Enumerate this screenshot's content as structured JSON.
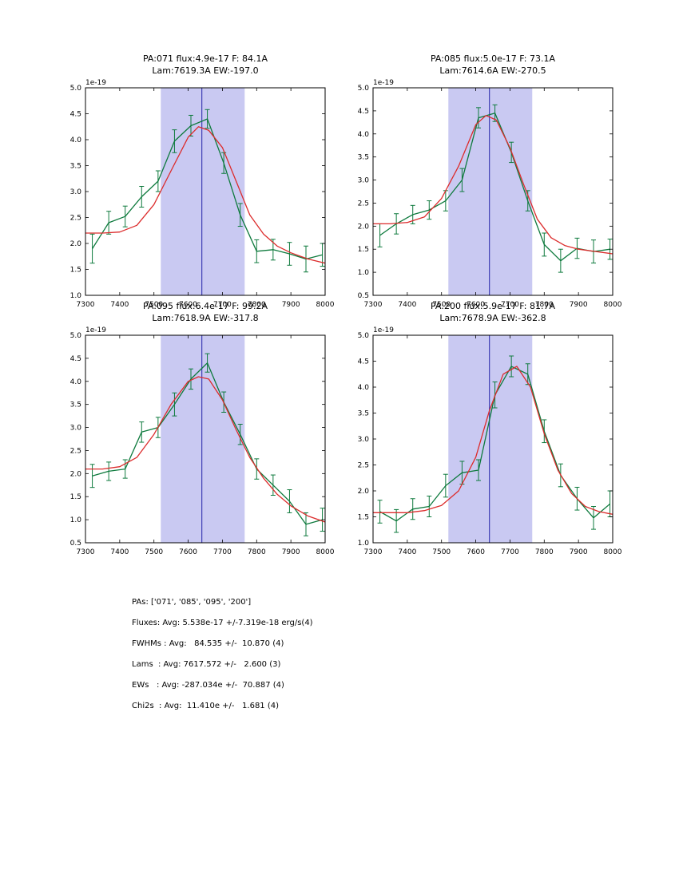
{
  "colors": {
    "band": "#c9c9f2",
    "vline": "#2222aa",
    "data_series": "#0e7a3d",
    "fit": "#dc2c2c",
    "axis": "#000000",
    "background": "#ffffff"
  },
  "chart_data": [
    {
      "type": "line",
      "title_line1": "PA:071 flux:4.9e-17 F: 84.1A",
      "title_line2": "Lam:7619.3A EW:-197.0",
      "offset_label": "1e-19",
      "xlim": [
        7300,
        8000
      ],
      "ylim": [
        1.0,
        5.0
      ],
      "xticks": [
        7300,
        7400,
        7500,
        7600,
        7700,
        7800,
        7900,
        8000
      ],
      "yticks": [
        1.0,
        1.5,
        2.0,
        2.5,
        3.0,
        3.5,
        4.0,
        4.5,
        5.0
      ],
      "band": [
        7520,
        7765
      ],
      "vline": 7640,
      "legend": "off",
      "grid": "off",
      "series": [
        {
          "name": "spectrum-data",
          "color_key": "data_series",
          "x": [
            7320,
            7368,
            7416,
            7464,
            7512,
            7560,
            7608,
            7656,
            7704,
            7752,
            7800,
            7848,
            7896,
            7944,
            7992
          ],
          "y": [
            1.9,
            2.4,
            2.52,
            2.9,
            3.2,
            3.97,
            4.27,
            4.4,
            3.55,
            2.55,
            1.85,
            1.88,
            1.8,
            1.7,
            1.78
          ],
          "yerr": [
            0.28,
            0.22,
            0.2,
            0.2,
            0.2,
            0.22,
            0.2,
            0.18,
            0.2,
            0.22,
            0.22,
            0.2,
            0.22,
            0.25,
            0.22
          ]
        },
        {
          "name": "model-fit",
          "color_key": "fit",
          "x": [
            7300,
            7350,
            7400,
            7450,
            7500,
            7550,
            7600,
            7630,
            7660,
            7700,
            7740,
            7780,
            7820,
            7860,
            7900,
            7950,
            8000
          ],
          "y": [
            2.2,
            2.2,
            2.22,
            2.35,
            2.75,
            3.4,
            4.05,
            4.25,
            4.18,
            3.85,
            3.2,
            2.55,
            2.18,
            1.95,
            1.82,
            1.7,
            1.62
          ]
        }
      ]
    },
    {
      "type": "line",
      "title_line1": "PA:085 flux:5.0e-17 F: 73.1A",
      "title_line2": "Lam:7614.6A EW:-270.5",
      "offset_label": "1e-19",
      "xlim": [
        7300,
        8000
      ],
      "ylim": [
        0.5,
        5.0
      ],
      "xticks": [
        7300,
        7400,
        7500,
        7600,
        7700,
        7800,
        7900,
        8000
      ],
      "yticks": [
        0.5,
        1.0,
        1.5,
        2.0,
        2.5,
        3.0,
        3.5,
        4.0,
        4.5,
        5.0
      ],
      "band": [
        7520,
        7765
      ],
      "vline": 7640,
      "legend": "off",
      "grid": "off",
      "series": [
        {
          "name": "spectrum-data",
          "color_key": "data_series",
          "x": [
            7320,
            7368,
            7416,
            7464,
            7512,
            7560,
            7608,
            7656,
            7704,
            7752,
            7800,
            7848,
            7896,
            7944,
            7992
          ],
          "y": [
            1.8,
            2.05,
            2.25,
            2.35,
            2.55,
            3.0,
            4.35,
            4.45,
            3.6,
            2.55,
            1.6,
            1.25,
            1.52,
            1.45,
            1.5
          ],
          "yerr": [
            0.25,
            0.22,
            0.2,
            0.2,
            0.22,
            0.25,
            0.22,
            0.18,
            0.22,
            0.22,
            0.25,
            0.25,
            0.22,
            0.25,
            0.22
          ]
        },
        {
          "name": "model-fit",
          "color_key": "fit",
          "x": [
            7300,
            7350,
            7400,
            7450,
            7500,
            7550,
            7600,
            7630,
            7660,
            7700,
            7740,
            7780,
            7820,
            7860,
            7900,
            7950,
            8000
          ],
          "y": [
            2.05,
            2.05,
            2.08,
            2.2,
            2.6,
            3.3,
            4.2,
            4.4,
            4.3,
            3.7,
            2.9,
            2.15,
            1.75,
            1.58,
            1.5,
            1.45,
            1.4
          ]
        }
      ]
    },
    {
      "type": "line",
      "title_line1": "PA:095 flux:6.4e-17 F: 99.2A",
      "title_line2": "Lam:7618.9A EW:-317.8",
      "offset_label": "1e-19",
      "xlim": [
        7300,
        8000
      ],
      "ylim": [
        0.5,
        5.0
      ],
      "xticks": [
        7300,
        7400,
        7500,
        7600,
        7700,
        7800,
        7900,
        8000
      ],
      "yticks": [
        0.5,
        1.0,
        1.5,
        2.0,
        2.5,
        3.0,
        3.5,
        4.0,
        4.5,
        5.0
      ],
      "band": [
        7520,
        7765
      ],
      "vline": 7640,
      "legend": "off",
      "grid": "off",
      "series": [
        {
          "name": "spectrum-data",
          "color_key": "data_series",
          "x": [
            7320,
            7368,
            7416,
            7464,
            7512,
            7560,
            7608,
            7656,
            7704,
            7752,
            7800,
            7848,
            7896,
            7944,
            7992
          ],
          "y": [
            1.95,
            2.05,
            2.1,
            2.9,
            3.0,
            3.5,
            4.05,
            4.4,
            3.55,
            2.85,
            2.1,
            1.75,
            1.4,
            0.9,
            1.0
          ],
          "yerr": [
            0.25,
            0.2,
            0.2,
            0.22,
            0.22,
            0.25,
            0.22,
            0.2,
            0.22,
            0.22,
            0.22,
            0.22,
            0.25,
            0.25,
            0.25
          ]
        },
        {
          "name": "model-fit",
          "color_key": "fit",
          "x": [
            7300,
            7350,
            7400,
            7450,
            7500,
            7550,
            7600,
            7630,
            7660,
            7700,
            7740,
            7780,
            7820,
            7860,
            7900,
            7950,
            8000
          ],
          "y": [
            2.1,
            2.1,
            2.15,
            2.35,
            2.85,
            3.5,
            4.0,
            4.1,
            4.05,
            3.6,
            2.95,
            2.35,
            1.9,
            1.55,
            1.3,
            1.08,
            0.95
          ]
        }
      ]
    },
    {
      "type": "line",
      "title_line1": "PA:200 flux:5.9e-17 F: 81.7A",
      "title_line2": "Lam:7678.9A EW:-362.8",
      "offset_label": "1e-19",
      "xlim": [
        7300,
        8000
      ],
      "ylim": [
        1.0,
        5.0
      ],
      "xticks": [
        7300,
        7400,
        7500,
        7600,
        7700,
        7800,
        7900,
        8000
      ],
      "yticks": [
        1.0,
        1.5,
        2.0,
        2.5,
        3.0,
        3.5,
        4.0,
        4.5,
        5.0
      ],
      "band": [
        7520,
        7765
      ],
      "vline": 7640,
      "legend": "off",
      "grid": "off",
      "series": [
        {
          "name": "spectrum-data",
          "color_key": "data_series",
          "x": [
            7320,
            7368,
            7416,
            7464,
            7512,
            7560,
            7608,
            7656,
            7704,
            7752,
            7800,
            7848,
            7896,
            7944,
            7992
          ],
          "y": [
            1.6,
            1.42,
            1.65,
            1.7,
            2.1,
            2.35,
            2.4,
            3.85,
            4.4,
            4.25,
            3.15,
            2.3,
            1.85,
            1.48,
            1.75
          ],
          "yerr": [
            0.22,
            0.22,
            0.2,
            0.2,
            0.22,
            0.22,
            0.2,
            0.25,
            0.2,
            0.2,
            0.22,
            0.22,
            0.22,
            0.22,
            0.25
          ]
        },
        {
          "name": "model-fit",
          "color_key": "fit",
          "x": [
            7300,
            7350,
            7400,
            7450,
            7500,
            7550,
            7600,
            7640,
            7680,
            7720,
            7760,
            7800,
            7840,
            7880,
            7920,
            7960,
            8000
          ],
          "y": [
            1.58,
            1.58,
            1.58,
            1.62,
            1.72,
            2.0,
            2.65,
            3.55,
            4.25,
            4.4,
            4.0,
            3.1,
            2.4,
            1.95,
            1.7,
            1.6,
            1.55
          ]
        }
      ]
    }
  ],
  "stats": {
    "lines": [
      "PAs: ['071', '085', '095', '200']",
      "Fluxes: Avg: 5.538e-17 +/-7.319e-18 erg/s(4)",
      "FWHMs : Avg:   84.535 +/-  10.870 (4)",
      "Lams  : Avg: 7617.572 +/-   2.600 (3)",
      "EWs   : Avg: -287.034e +/-  70.887 (4)",
      "Chi2s  : Avg:  11.410e +/-   1.681 (4)"
    ]
  }
}
